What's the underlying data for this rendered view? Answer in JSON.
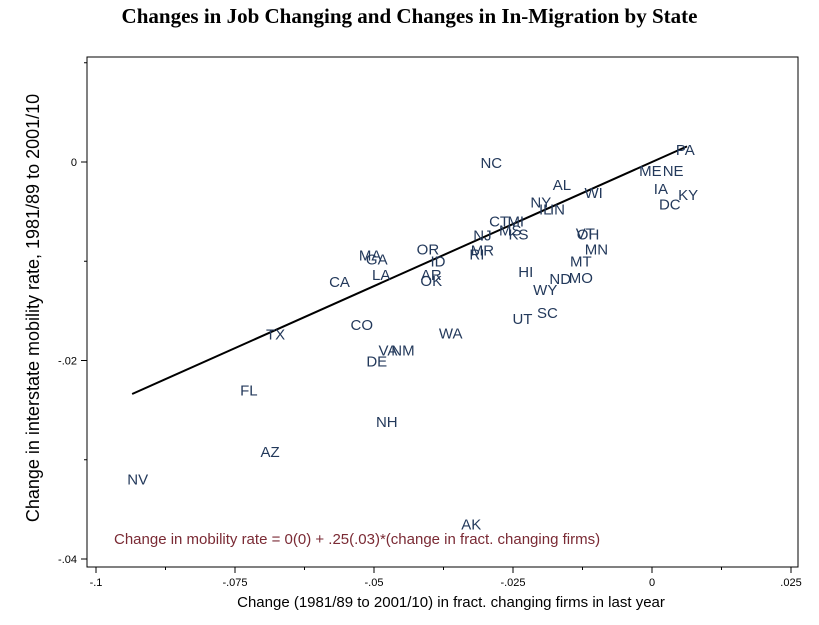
{
  "chart_data": {
    "type": "scatter",
    "title": "Changes in Job Changing and Changes in In-Migration by State",
    "xlabel": "Change (1981/89 to 2001/10) in fract. changing firms in last year",
    "ylabel": "Change in interstate mobility rate, 1981/89 to 2001/10",
    "xlim": [
      -0.1,
      0.025
    ],
    "ylim": [
      -0.04,
      0.01
    ],
    "x_ticks": [
      {
        "value": -0.1,
        "label": "-.1"
      },
      {
        "value": -0.075,
        "label": "-.075"
      },
      {
        "value": -0.05,
        "label": "-.05"
      },
      {
        "value": -0.025,
        "label": "-.025"
      },
      {
        "value": 0,
        "label": "0"
      },
      {
        "value": 0.025,
        "label": ".025"
      }
    ],
    "y_ticks": [
      {
        "value": 0,
        "label": "0"
      },
      {
        "value": -0.02,
        "label": "-.02"
      },
      {
        "value": -0.04,
        "label": "-.04"
      }
    ],
    "grid": false,
    "points": [
      {
        "label": "PA",
        "x": 0.006,
        "y": 0.0012
      },
      {
        "label": "ME",
        "x": -0.0003,
        "y": -0.0009
      },
      {
        "label": "NE",
        "x": 0.0038,
        "y": -0.0009
      },
      {
        "label": "IA",
        "x": 0.0016,
        "y": -0.0027
      },
      {
        "label": "KY",
        "x": 0.0065,
        "y": -0.0033
      },
      {
        "label": "DC",
        "x": 0.0032,
        "y": -0.0043
      },
      {
        "label": "NC",
        "x": -0.0289,
        "y": -0.0001
      },
      {
        "label": "AL",
        "x": -0.0162,
        "y": -0.0023
      },
      {
        "label": "WI",
        "x": -0.0105,
        "y": -0.0031
      },
      {
        "label": "NY",
        "x": -0.02,
        "y": -0.0041
      },
      {
        "label": "IL",
        "x": -0.0192,
        "y": -0.0048
      },
      {
        "label": "IN",
        "x": -0.017,
        "y": -0.0048
      },
      {
        "label": "CT",
        "x": -0.0275,
        "y": -0.006
      },
      {
        "label": "MI",
        "x": -0.0245,
        "y": -0.006
      },
      {
        "label": "MS",
        "x": -0.0255,
        "y": -0.0069
      },
      {
        "label": "KS",
        "x": -0.024,
        "y": -0.0073
      },
      {
        "label": "NJ",
        "x": -0.0305,
        "y": -0.0074
      },
      {
        "label": "VT",
        "x": -0.012,
        "y": -0.0072
      },
      {
        "label": "OH",
        "x": -0.0115,
        "y": -0.0073
      },
      {
        "label": "MR",
        "x": -0.0305,
        "y": -0.0089
      },
      {
        "label": "RI",
        "x": -0.0315,
        "y": -0.0093
      },
      {
        "label": "OR",
        "x": -0.0403,
        "y": -0.0088
      },
      {
        "label": "ID",
        "x": -0.0385,
        "y": -0.01
      },
      {
        "label": "MA",
        "x": -0.0507,
        "y": -0.0094
      },
      {
        "label": "GA",
        "x": -0.0495,
        "y": -0.0098
      },
      {
        "label": "LA",
        "x": -0.0487,
        "y": -0.0114
      },
      {
        "label": "CA",
        "x": -0.0562,
        "y": -0.0121
      },
      {
        "label": "AR",
        "x": -0.0397,
        "y": -0.0114
      },
      {
        "label": "OK",
        "x": -0.0397,
        "y": -0.012
      },
      {
        "label": "HI",
        "x": -0.0227,
        "y": -0.0111
      },
      {
        "label": "ND",
        "x": -0.0165,
        "y": -0.0118
      },
      {
        "label": "MO",
        "x": -0.0128,
        "y": -0.0117
      },
      {
        "label": "MT",
        "x": -0.0128,
        "y": -0.01
      },
      {
        "label": "MN",
        "x": -0.01,
        "y": -0.0088
      },
      {
        "label": "WY",
        "x": -0.0192,
        "y": -0.0129
      },
      {
        "label": "SC",
        "x": -0.0188,
        "y": -0.0152
      },
      {
        "label": "UT",
        "x": -0.0233,
        "y": -0.0158
      },
      {
        "label": "CO",
        "x": -0.0522,
        "y": -0.0164
      },
      {
        "label": "TX",
        "x": -0.0677,
        "y": -0.0174
      },
      {
        "label": "WA",
        "x": -0.0362,
        "y": -0.0173
      },
      {
        "label": "VA",
        "x": -0.0475,
        "y": -0.019
      },
      {
        "label": "NM",
        "x": -0.0448,
        "y": -0.019
      },
      {
        "label": "DE",
        "x": -0.0495,
        "y": -0.0201
      },
      {
        "label": "FL",
        "x": -0.0725,
        "y": -0.023
      },
      {
        "label": "NH",
        "x": -0.0477,
        "y": -0.0262
      },
      {
        "label": "AZ",
        "x": -0.0687,
        "y": -0.0292
      },
      {
        "label": "NV",
        "x": -0.0925,
        "y": -0.032
      },
      {
        "label": "AK",
        "x": -0.0325,
        "y": -0.0365
      }
    ],
    "fit_line": {
      "intercept": 0,
      "slope": 0.25,
      "x_range": [
        -0.0935,
        0.0063
      ]
    },
    "annotation": "Change in mobility rate = 0(0) + .25(.03)*(change in fract. changing firms)"
  }
}
